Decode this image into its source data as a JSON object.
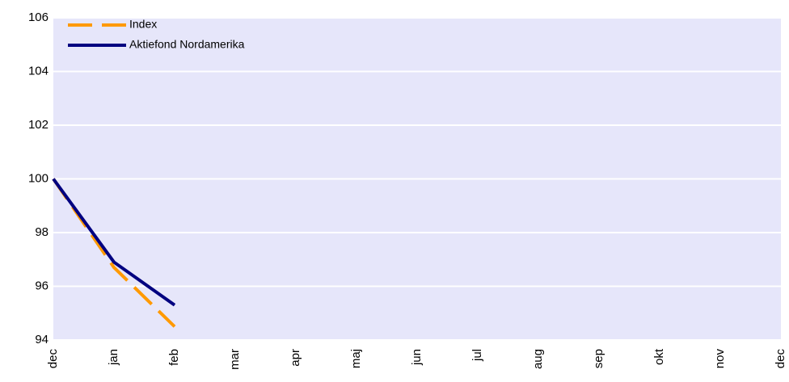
{
  "chart_data": {
    "type": "line",
    "categories": [
      "dec",
      "jan",
      "feb",
      "mar",
      "apr",
      "maj",
      "jun",
      "jul",
      "aug",
      "sep",
      "okt",
      "nov",
      "dec"
    ],
    "series": [
      {
        "name": "Index",
        "color": "#ff9900",
        "dashed": true,
        "values": [
          100,
          96.7,
          94.5,
          null,
          null,
          null,
          null,
          null,
          null,
          null,
          null,
          null,
          null
        ]
      },
      {
        "name": "Aktiefond Nordamerika",
        "color": "#000080",
        "dashed": false,
        "values": [
          100,
          96.9,
          95.3,
          null,
          null,
          null,
          null,
          null,
          null,
          null,
          null,
          null,
          null
        ]
      }
    ],
    "ylim": [
      94,
      106
    ],
    "yticks": [
      94,
      96,
      98,
      100,
      102,
      104,
      106
    ],
    "grid": true,
    "legend": "upper left",
    "background": "#e6e6fa"
  }
}
